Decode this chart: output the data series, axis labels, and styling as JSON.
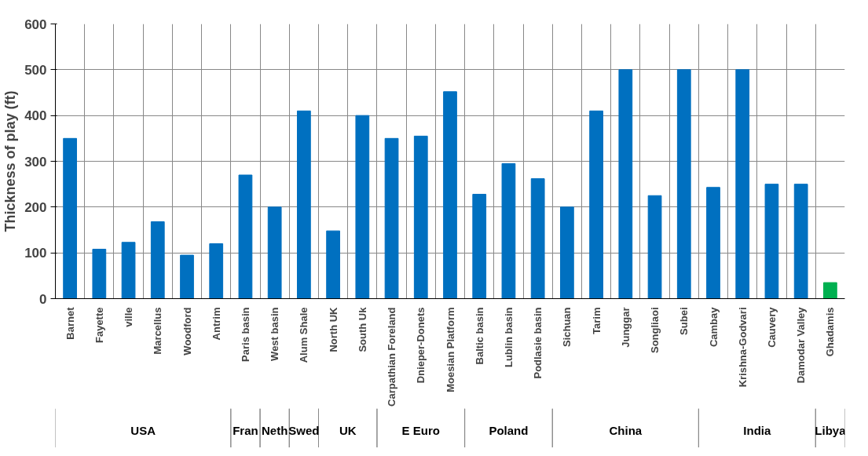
{
  "chart_data": {
    "type": "bar",
    "ylabel": "Thickness of play (ft)",
    "categories": [
      "Barnet",
      "Fayette",
      "ville",
      "Marcellus",
      "Woodford",
      "Antrim",
      "Paris basin",
      "West basin",
      "Alum Shale",
      "North UK",
      "South Uk",
      "Carpathian Foreland",
      "Dnieper-Donets",
      "Moesian Platform",
      "Baltic basin",
      "Lublin basin",
      "Podlasie basin",
      "Sichuan",
      "Tarim",
      "Junggar",
      "Songliaoi",
      "Subei",
      "Cambay",
      "Krishna-Godvari",
      "Cauvery",
      "Damodar Valley",
      "Ghadamis"
    ],
    "values": [
      350,
      108,
      123,
      168,
      95,
      120,
      270,
      200,
      410,
      148,
      400,
      350,
      355,
      452,
      228,
      295,
      262,
      200,
      410,
      500,
      225,
      500,
      243,
      500,
      250,
      250,
      35
    ],
    "colors": [
      "#0070c0",
      "#0070c0",
      "#0070c0",
      "#0070c0",
      "#0070c0",
      "#0070c0",
      "#0070c0",
      "#0070c0",
      "#0070c0",
      "#0070c0",
      "#0070c0",
      "#0070c0",
      "#0070c0",
      "#0070c0",
      "#0070c0",
      "#0070c0",
      "#0070c0",
      "#0070c0",
      "#0070c0",
      "#0070c0",
      "#0070c0",
      "#0070c0",
      "#0070c0",
      "#0070c0",
      "#0070c0",
      "#0070c0",
      "#00b050"
    ],
    "ylim": [
      0,
      600
    ],
    "yticks": [
      0,
      100,
      200,
      300,
      400,
      500,
      600
    ],
    "grid": true,
    "annotations": [
      "USA",
      "Fran",
      "Neth",
      "Swed",
      "UK",
      "E Euro",
      "Poland",
      "China",
      "India",
      "Libya"
    ]
  }
}
